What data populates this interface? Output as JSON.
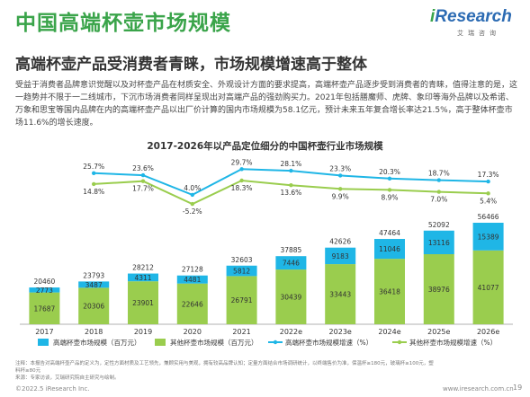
{
  "header": {
    "title": "中国高端杯壶市场规模",
    "logo_prefix": "i",
    "logo_text": "Research",
    "logo_sub": "艾瑞咨询"
  },
  "subtitle": "高端杯壶产品受消费者青睐，市场规模增速高于整体",
  "body_text": "受益于消费者品牌意识觉醒以及对杯壶产品在材质安全、外观设计方面的要求提高，高端杯壶产品逐步受到消费者的青睐，值得注意的是，这一趋势并不限于一二线城市，下沉市场消费者同样呈现出对高端产品的强劲购买力。2021年包括膳魔师、虎牌、象印等海外品牌以及希诺、万象和思宝等国内品牌在内的高端杯壶产品以出厂价计算的国内市场规模为58.1亿元，预计未来五年复合增长率达21.5%，高于整体杯壶市场11.6%的增长速度。",
  "chart_data": {
    "type": "bar",
    "title": "2017-2026年以产品定位细分的中国杯壶行业市场规模",
    "categories": [
      "2017",
      "2018",
      "2019",
      "2020",
      "2021",
      "2022e",
      "2023e",
      "2024e",
      "2025e",
      "2026e"
    ],
    "totals": [
      20460,
      23793,
      28212,
      27128,
      32603,
      37885,
      42626,
      47464,
      52092,
      56466
    ],
    "series": [
      {
        "name": "高端杯壶市场规模（百万元）",
        "kind": "bar",
        "color": "#1fb6e6",
        "values": [
          2773,
          3487,
          4311,
          4481,
          5812,
          7446,
          9183,
          11046,
          13116,
          15389
        ]
      },
      {
        "name": "其他杯壶市场规模（百万元）",
        "kind": "bar",
        "color": "#9acd4e",
        "values": [
          17687,
          20306,
          23901,
          22646,
          26791,
          30439,
          33443,
          36418,
          38976,
          41077
        ]
      },
      {
        "name": "高端杯壶市场规模增速（%）",
        "kind": "line",
        "color": "#1fb6e6",
        "values": [
          null,
          25.7,
          23.6,
          4.0,
          29.7,
          28.1,
          23.3,
          20.3,
          18.7,
          17.3
        ]
      },
      {
        "name": "其他杯壶市场规模增速（%）",
        "kind": "line",
        "color": "#9acd4e",
        "values": [
          null,
          14.8,
          17.7,
          -5.2,
          18.3,
          13.6,
          9.9,
          8.9,
          7.0,
          5.4
        ]
      }
    ],
    "legend_position": "bottom"
  },
  "notes": {
    "note": "注释：本报告对高端杯壶产品的定义为，定性方面材质及工艺领先，兼顾实用与美观，拥有较高品牌认知；定量方面结合市场调研统计，以终端售价为准，保温杯≥180元，玻璃杯≥100元，塑料杯≥80元",
    "source": "来源：专家访谈，艾瑞研究院自主研究与绘制。"
  },
  "footer": {
    "copyright": "©2022.5 iResearch Inc.",
    "url": "www.iresearch.com.cn",
    "page": "19"
  }
}
